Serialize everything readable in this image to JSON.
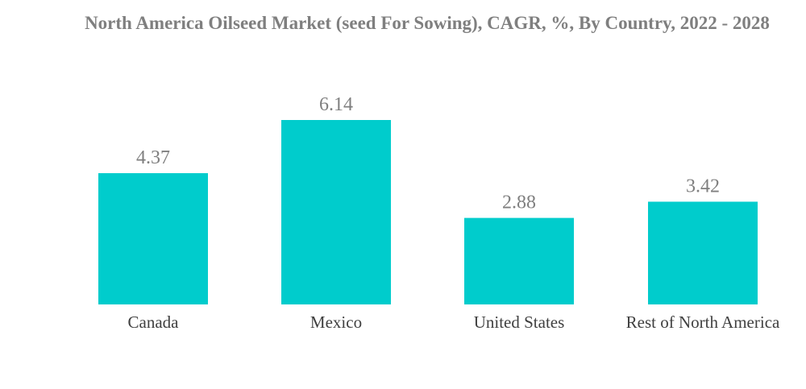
{
  "chart_data": {
    "type": "bar",
    "title": "North America Oilseed Market (seed For Sowing), CAGR, %, By Country, 2022 - 2028",
    "categories": [
      "Canada",
      "Mexico",
      "United States",
      "Rest of North America"
    ],
    "values": [
      4.37,
      6.14,
      2.88,
      3.42
    ],
    "value_labels": [
      "4.37",
      "6.14",
      "2.88",
      "3.42"
    ],
    "xlabel": "",
    "ylabel": "",
    "ylim": [
      0,
      6.14
    ],
    "grid": false,
    "legend": "none",
    "colors": {
      "bar": "#00cccc",
      "title": "#7f7f7f",
      "data_label": "#7f7f7f",
      "tick_label": "#404040"
    }
  }
}
